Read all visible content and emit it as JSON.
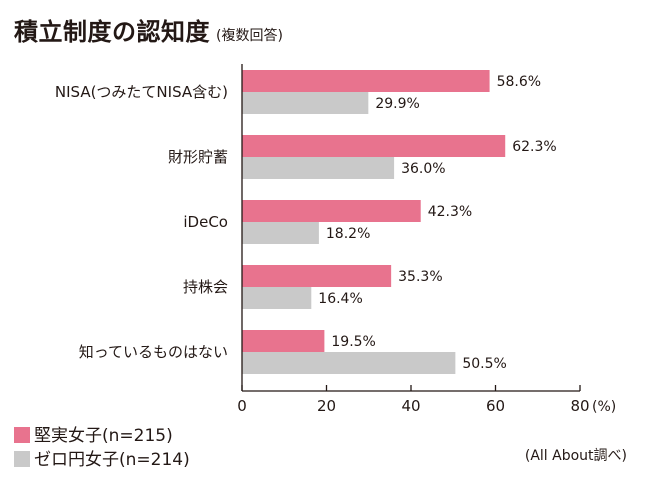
{
  "chart_data": {
    "type": "bar",
    "orientation": "horizontal",
    "title": "積立制度の認知度",
    "subtitle": "(複数回答)",
    "categories": [
      "NISA(つみたてNISA含む)",
      "財形貯蓄",
      "iDeCo",
      "持株会",
      "知っているものはない"
    ],
    "series": [
      {
        "name": "堅実女子(n=215)",
        "color": "#e8738e",
        "values": [
          58.6,
          62.3,
          42.3,
          35.3,
          19.5
        ],
        "labels": [
          "58.6%",
          "62.3%",
          "42.3%",
          "35.3%",
          "19.5%"
        ]
      },
      {
        "name": "ゼロ円女子(n=214)",
        "color": "#c9c9c9",
        "values": [
          29.9,
          36.0,
          18.2,
          16.4,
          50.5
        ],
        "labels": [
          "29.9%",
          "36.0%",
          "18.2%",
          "16.4%",
          "50.5%"
        ]
      }
    ],
    "xlim": [
      0,
      80
    ],
    "xticks": [
      "0",
      "20",
      "40",
      "60",
      "80"
    ],
    "xunit": "(%)",
    "grid": false,
    "legend_position": "bottom-left",
    "source": "(All About調べ)"
  }
}
